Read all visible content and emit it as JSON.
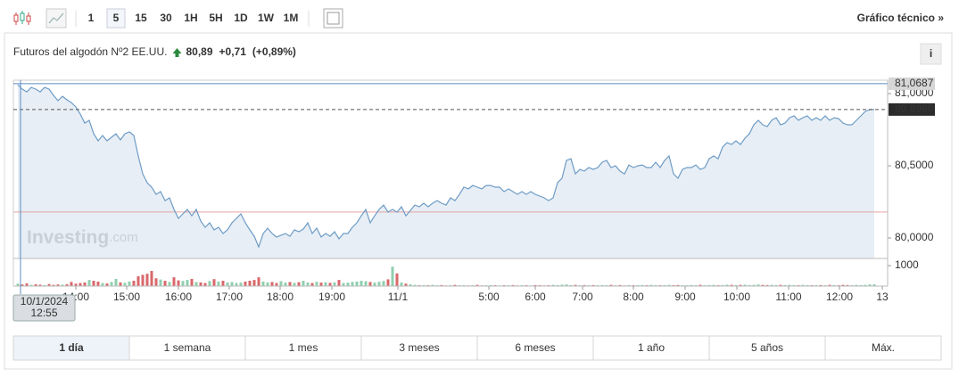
{
  "toolbar": {
    "intervals": [
      "1",
      "5",
      "15",
      "30",
      "1H",
      "5H",
      "1D",
      "1W",
      "1M"
    ],
    "selected": 1,
    "technical_link": "Gráfico técnico »"
  },
  "header": {
    "title": "Futuros del algodón Nº2 EE.UU.",
    "price": "80,89",
    "change": "+0,71",
    "change_percent": "(+0,89%)",
    "info_button": "i"
  },
  "chart_data": {
    "type": "line",
    "color": "#6e9cc6",
    "fill_color": "#e3ebf3",
    "grid": false,
    "x": [
      1,
      2,
      3,
      4,
      5,
      6,
      7,
      8,
      9,
      10,
      11,
      12,
      13,
      14,
      15,
      16,
      17,
      18,
      19,
      20,
      21,
      22,
      23,
      24,
      25,
      26,
      27,
      28,
      29,
      30,
      31,
      32,
      33,
      34,
      35,
      36,
      37,
      38,
      39,
      40,
      41,
      42,
      43,
      44,
      45,
      46,
      47,
      48,
      49,
      50,
      51,
      52,
      53,
      54,
      55,
      56,
      57,
      58,
      59,
      60,
      61,
      62,
      63,
      64,
      65,
      66,
      67,
      68,
      69,
      70,
      71,
      72,
      73,
      74,
      75,
      76,
      77,
      78,
      79,
      80,
      81,
      82,
      83,
      84,
      85,
      86,
      87,
      88,
      89,
      90,
      91,
      92,
      93,
      94,
      95,
      96,
      97,
      98,
      99,
      100,
      101,
      102,
      103,
      104,
      105,
      106,
      107,
      108,
      109,
      110,
      111,
      112,
      113,
      114,
      115,
      116,
      117,
      118,
      119,
      120,
      121,
      122,
      123,
      124,
      125,
      126,
      127,
      128,
      129,
      130,
      131,
      132,
      133,
      134,
      135,
      136,
      137,
      138,
      139,
      140,
      141,
      142,
      143,
      144,
      145,
      146,
      147,
      148,
      149,
      150,
      151,
      152,
      153,
      154,
      155,
      156,
      157,
      158,
      159,
      160,
      161,
      162,
      163,
      164,
      165,
      166,
      167,
      168,
      169,
      170,
      171,
      172,
      173,
      174,
      175,
      176,
      177,
      178,
      179,
      180,
      181,
      182,
      183,
      184,
      185,
      186,
      187,
      188,
      189,
      190,
      191,
      192,
      193
    ],
    "values": [
      81.062,
      81.031,
      81.012,
      81.043,
      81.031,
      81.012,
      81.043,
      81.031,
      80.988,
      80.951,
      80.981,
      80.957,
      80.938,
      80.907,
      80.858,
      80.796,
      80.815,
      80.722,
      80.673,
      80.71,
      80.673,
      80.698,
      80.722,
      80.679,
      80.722,
      80.735,
      80.71,
      80.568,
      80.444,
      80.383,
      80.352,
      80.302,
      80.321,
      80.259,
      80.278,
      80.198,
      80.136,
      80.167,
      80.198,
      80.154,
      80.198,
      80.117,
      80.074,
      80.105,
      80.056,
      80.074,
      80.031,
      80.056,
      80.105,
      80.136,
      80.167,
      80.105,
      80.056,
      80.012,
      79.938,
      80.031,
      80.068,
      80.031,
      80.006,
      80.019,
      80.031,
      80.012,
      80.056,
      80.043,
      80.062,
      80.105,
      80.031,
      80.068,
      80.006,
      80.031,
      80.012,
      80.043,
      79.994,
      80.031,
      80.031,
      80.074,
      80.105,
      80.154,
      80.198,
      80.105,
      80.154,
      80.198,
      80.228,
      80.179,
      80.198,
      80.179,
      80.216,
      80.154,
      80.191,
      80.228,
      80.216,
      80.241,
      80.216,
      80.241,
      80.259,
      80.241,
      80.228,
      80.278,
      80.259,
      80.302,
      80.352,
      80.34,
      80.364,
      80.352,
      80.34,
      80.364,
      80.364,
      80.352,
      80.352,
      80.321,
      80.34,
      80.321,
      80.302,
      80.321,
      80.302,
      80.321,
      80.302,
      80.29,
      80.278,
      80.259,
      80.278,
      80.383,
      80.414,
      80.537,
      80.549,
      80.444,
      80.475,
      80.463,
      80.488,
      80.475,
      80.488,
      80.525,
      80.537,
      80.488,
      80.5,
      80.463,
      80.444,
      80.506,
      80.488,
      80.5,
      80.506,
      80.488,
      80.488,
      80.525,
      80.488,
      80.537,
      80.568,
      80.444,
      80.414,
      80.475,
      80.488,
      80.488,
      80.506,
      80.475,
      80.488,
      80.549,
      80.568,
      80.549,
      80.63,
      80.66,
      80.648,
      80.673,
      80.648,
      80.691,
      80.722,
      80.784,
      80.815,
      80.784,
      80.772,
      80.815,
      80.833,
      80.784,
      80.796,
      80.833,
      80.846,
      80.815,
      80.833,
      80.846,
      80.815,
      80.833,
      80.815,
      80.846,
      80.815,
      80.833,
      80.827,
      80.796,
      80.784,
      80.784,
      80.815,
      80.846,
      80.877,
      80.889,
      80.89
    ],
    "volume": {
      "axis": "y2",
      "up_color": "#8fcfae",
      "down_color": "#d9686b",
      "values": [
        120,
        80,
        130,
        60,
        90,
        70,
        50,
        100,
        60,
        80,
        70,
        90,
        200,
        120,
        150,
        180,
        300,
        260,
        220,
        150,
        130,
        200,
        350,
        180,
        160,
        220,
        260,
        480,
        550,
        600,
        740,
        380,
        320,
        260,
        200,
        430,
        280,
        250,
        300,
        350,
        200,
        180,
        150,
        250,
        340,
        220,
        260,
        180,
        200,
        150,
        170,
        220,
        260,
        300,
        430,
        220,
        180,
        200,
        150,
        240,
        170,
        200,
        160,
        190,
        260,
        180,
        150,
        210,
        170,
        190,
        160,
        180,
        300,
        150,
        170,
        200,
        220,
        260,
        240,
        200,
        170,
        210,
        250,
        330,
        950,
        620,
        180,
        120,
        90,
        60,
        40,
        50,
        40,
        60,
        40,
        50,
        30,
        40,
        60,
        40,
        40,
        30,
        40,
        60,
        30,
        40,
        50,
        40,
        30,
        40,
        40,
        50,
        30,
        40,
        40,
        30,
        50,
        40,
        30,
        40,
        60,
        50,
        70,
        80,
        50,
        60,
        40,
        50,
        40,
        50,
        40,
        50,
        40,
        60,
        40,
        50,
        30,
        50,
        40,
        40,
        50,
        40,
        60,
        50,
        40,
        50,
        60,
        40,
        50,
        40,
        40,
        50,
        40,
        60,
        40,
        50,
        60,
        40,
        50,
        70,
        60,
        50,
        60,
        70,
        50,
        60,
        80,
        60,
        50,
        60,
        50,
        60,
        50,
        60,
        50,
        40,
        60,
        50,
        40,
        50,
        50,
        40,
        60,
        50,
        40,
        60,
        50,
        40,
        60,
        50,
        60,
        80,
        90
      ]
    },
    "xlim": [
      0,
      196
    ],
    "xticks": [
      {
        "value": 14,
        "label": "14:00"
      },
      {
        "value": 25.4,
        "label": "15:00"
      },
      {
        "value": 37,
        "label": "16:00"
      },
      {
        "value": 48.4,
        "label": "17:00"
      },
      {
        "value": 59.8,
        "label": "18:00"
      },
      {
        "value": 71.4,
        "label": "19:00"
      },
      {
        "value": 86.2,
        "label": "11/1"
      },
      {
        "value": 106.6,
        "label": "5:00"
      },
      {
        "value": 117,
        "label": "6:00"
      },
      {
        "value": 127.6,
        "label": "7:00"
      },
      {
        "value": 139,
        "label": "8:00"
      },
      {
        "value": 150.6,
        "label": "9:00"
      },
      {
        "value": 162.2,
        "label": "10:00"
      },
      {
        "value": 173.8,
        "label": "11:00"
      },
      {
        "value": 185.2,
        "label": "12:00"
      },
      {
        "value": 194.8,
        "label": "13"
      }
    ],
    "ylim": [
      79.858,
      81.093
    ],
    "yticks": [
      {
        "value": 81,
        "label": "81,0000"
      },
      {
        "value": 80.5,
        "label": "80,5000"
      },
      {
        "value": 80,
        "label": "80,0000"
      }
    ],
    "y2lim": [
      0,
      1350
    ],
    "y2ticks": [
      1000
    ],
    "high": {
      "value": 81.0687,
      "label": "81,0687"
    },
    "last": {
      "value": 80.89,
      "label": "80,8900"
    },
    "previous_close": 80.18,
    "crosshair": {
      "x": 1.6,
      "date": "10/1/2024",
      "time": "12:55"
    },
    "watermark": [
      "Investing",
      ".com"
    ]
  },
  "ranges": {
    "buttons": [
      "1 día",
      "1 semana",
      "1 mes",
      "3 meses",
      "6 meses",
      "1 año",
      "5 años",
      "Máx."
    ],
    "selected": 0
  }
}
